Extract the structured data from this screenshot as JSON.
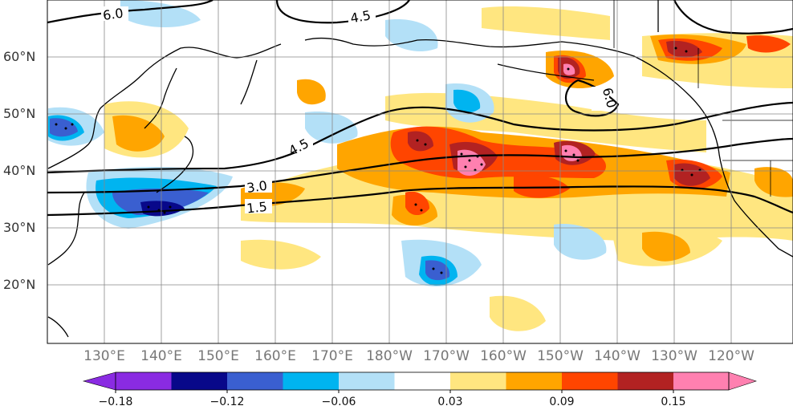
{
  "map": {
    "lat_labels": [
      "60°N",
      "50°N",
      "40°N",
      "30°N",
      "20°N"
    ],
    "lon_labels": [
      "130°E",
      "140°E",
      "150°E",
      "160°E",
      "170°E",
      "180°W",
      "170°W",
      "160°W",
      "150°W",
      "140°W",
      "130°W",
      "120°W"
    ],
    "contour_labels": [
      "6.0",
      "4.5",
      "4.5",
      "3.0",
      "1.5",
      "6.0"
    ],
    "colors": {
      "ocean": "#ffffff",
      "coast": "#000000",
      "grid": "#888888"
    }
  },
  "colorbar": {
    "tick_labels": [
      "−0.18",
      "−0.12",
      "−0.06",
      "0.03",
      "0.09",
      "0.15"
    ],
    "colors": [
      "#8a2be2",
      "#08088a",
      "#3a5fd0",
      "#00b4f0",
      "#b3e0f7",
      "#ffffff",
      "#ffe680",
      "#ffa500",
      "#ff4500",
      "#b22222",
      "#ff80b0"
    ]
  }
}
